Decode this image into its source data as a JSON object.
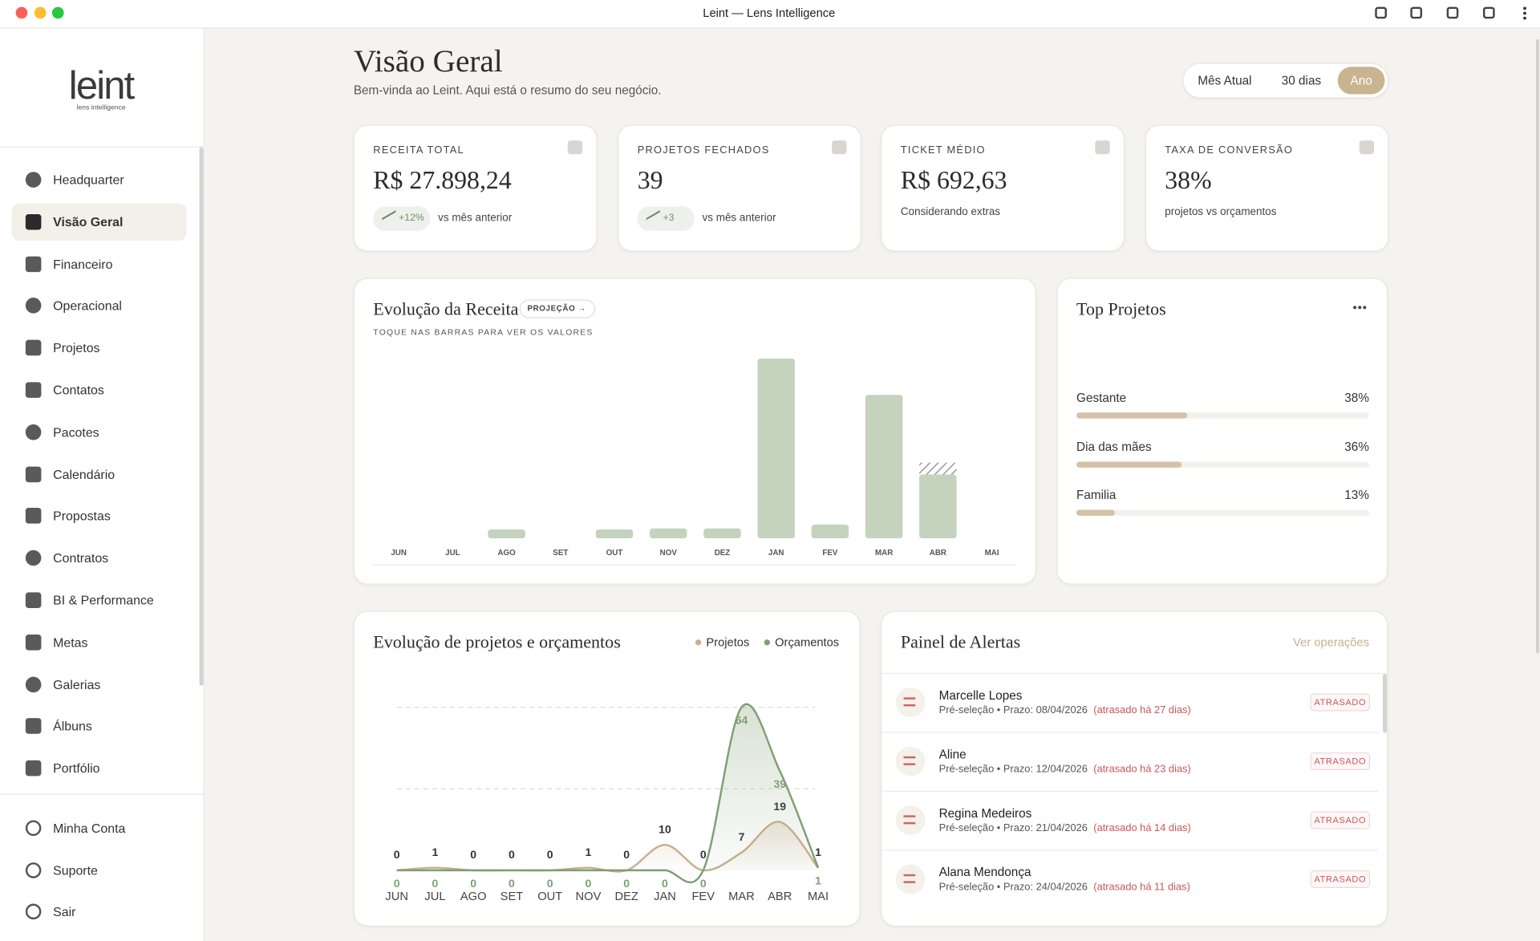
{
  "window": {
    "title": "Leint — Lens Intelligence"
  },
  "brand": {
    "name": "leint",
    "tagline": "lens intelligence"
  },
  "sidebar": {
    "nav": [
      "Headquarter",
      "Visão Geral",
      "Financeiro",
      "Operacional",
      "Projetos",
      "Contatos",
      "Pacotes",
      "Calendário",
      "Propostas",
      "Contratos",
      "BI & Performance",
      "Metas",
      "Galerias",
      "Álbuns",
      "Portfólio"
    ],
    "account": [
      "Minha Conta",
      "Suporte",
      "Sair"
    ]
  },
  "header": {
    "title": "Visão Geral",
    "subtitle": "Bem-vinda ao Leint. Aqui está o resumo do seu negócio.",
    "periods": [
      "Mês Atual",
      "30 dias",
      "Ano"
    ]
  },
  "kpis": [
    {
      "label": "RECEITA TOTAL",
      "value": "R$ 27.898,24",
      "trend": "+12%",
      "note": "vs mês anterior"
    },
    {
      "label": "PROJETOS FECHADOS",
      "value": "39",
      "trend": "+3",
      "note": "vs mês anterior"
    },
    {
      "label": "TICKET MÉDIO",
      "value": "R$ 692,63",
      "note": "Considerando extras"
    },
    {
      "label": "TAXA DE CONVERSÃO",
      "value": "38%",
      "note": "projetos vs orçamentos"
    }
  ],
  "revenue_chart": {
    "type": "bar",
    "title": "Evolução da Receita",
    "badge": "PROJEÇÃO →",
    "hint": "TOQUE NAS BARRAS PARA VER OS VALORES",
    "categories": [
      "JUN",
      "JUL",
      "AGO",
      "SET",
      "OUT",
      "NOV",
      "DEZ",
      "JAN",
      "FEV",
      "MAR",
      "ABR",
      "MAI"
    ],
    "values": [
      0,
      0,
      9,
      0,
      9,
      10,
      10,
      183,
      14,
      146,
      65,
      0
    ],
    "projected_values": [
      null,
      null,
      null,
      null,
      null,
      null,
      null,
      null,
      null,
      null,
      12,
      null
    ],
    "color": "#c5d2be",
    "ylim": [
      0,
      200
    ]
  },
  "top_projects": {
    "title": "Top Projetos",
    "items": [
      {
        "name": "Gestante",
        "value": 38,
        "value_label": "38%"
      },
      {
        "name": "Dia das mães",
        "value": 36,
        "value_label": "36%"
      },
      {
        "name": "Familia",
        "value": 13,
        "value_label": "13%"
      }
    ]
  },
  "projects_chart": {
    "type": "line",
    "title": "Evolução de projetos e orçamentos",
    "categories": [
      "JUN",
      "JUL",
      "AGO",
      "SET",
      "OUT",
      "NOV",
      "DEZ",
      "JAN",
      "FEV",
      "MAR",
      "ABR",
      "MAI"
    ],
    "series": [
      {
        "name": "Projetos",
        "color": "#c9b08e",
        "values": [
          0,
          1,
          0,
          0,
          0,
          1,
          0,
          10,
          0,
          7,
          19,
          1
        ]
      },
      {
        "name": "Orçamentos",
        "color": "#7f9f73",
        "values": [
          0,
          0,
          0,
          0,
          0,
          0,
          0,
          0,
          0,
          64,
          39,
          1
        ]
      }
    ],
    "ylim": [
      0,
      64
    ],
    "yticks": [
      32,
      64
    ],
    "grid": true
  },
  "alerts": {
    "title": "Painel de Alertas",
    "link": "Ver operações",
    "items": [
      {
        "name": "Marcelle Lopes",
        "detail": "Pré-seleção • Prazo: 08/04/2026",
        "overdue": "(atrasado há 27 dias)",
        "status": "ATRASADO"
      },
      {
        "name": "Aline",
        "detail": "Pré-seleção • Prazo: 12/04/2026",
        "overdue": "(atrasado há 23 dias)",
        "status": "ATRASADO"
      },
      {
        "name": "Regina Medeiros",
        "detail": "Pré-seleção • Prazo: 21/04/2026",
        "overdue": "(atrasado há 14 dias)",
        "status": "ATRASADO"
      },
      {
        "name": "Alana Mendonça",
        "detail": "Pré-seleção • Prazo: 24/04/2026",
        "overdue": "(atrasado há 11 dias)",
        "status": "ATRASADO"
      }
    ]
  }
}
